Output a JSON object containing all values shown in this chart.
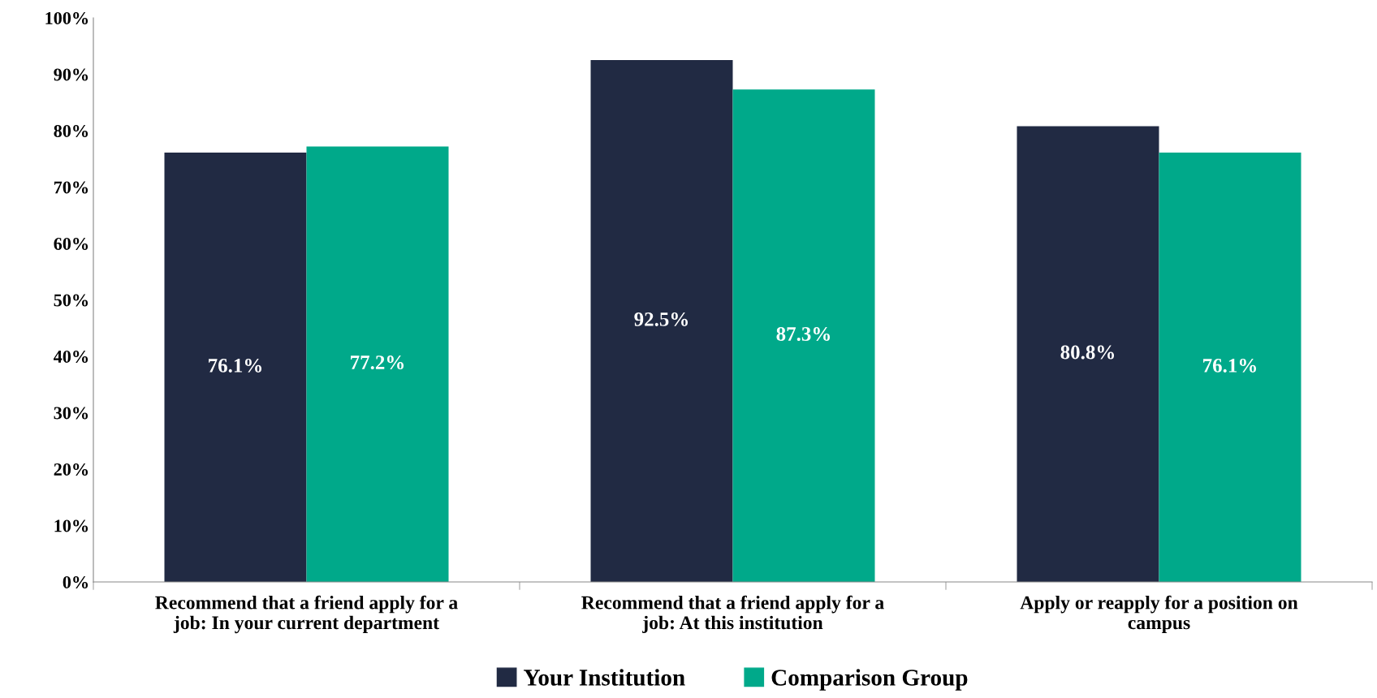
{
  "chart_data": {
    "type": "bar",
    "categories": [
      "Recommend that a friend apply for a\njob: In your current department",
      "Recommend that a friend apply for a\njob: At this institution",
      "Apply or reapply for a position on\ncampus"
    ],
    "series": [
      {
        "name": "Your Institution",
        "color": "#212a43",
        "values": [
          76.1,
          92.5,
          80.8
        ],
        "value_labels": [
          "76.1%",
          "92.5%",
          "80.8%"
        ]
      },
      {
        "name": "Comparison Group",
        "color": "#00a98a",
        "values": [
          77.2,
          87.3,
          76.1
        ],
        "value_labels": [
          "77.2%",
          "87.3%",
          "76.1%"
        ]
      }
    ],
    "ylim": [
      0,
      100
    ],
    "yticks": [
      {
        "value": 0,
        "label": "0%"
      },
      {
        "value": 10,
        "label": "10%"
      },
      {
        "value": 20,
        "label": "20%"
      },
      {
        "value": 30,
        "label": "30%"
      },
      {
        "value": 40,
        "label": "40%"
      },
      {
        "value": 50,
        "label": "50%"
      },
      {
        "value": 60,
        "label": "60%"
      },
      {
        "value": 70,
        "label": "70%"
      },
      {
        "value": 80,
        "label": "80%"
      },
      {
        "value": 90,
        "label": "90%"
      },
      {
        "value": 100,
        "label": "100%"
      }
    ],
    "grid": false,
    "legend": "bottom"
  }
}
